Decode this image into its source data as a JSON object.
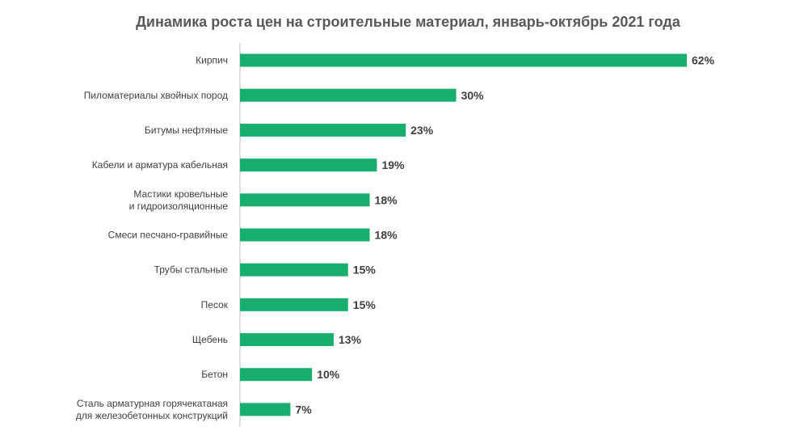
{
  "chart_data": {
    "type": "bar",
    "orientation": "horizontal",
    "title": "Динамика роста цен на строительные материал, январь-октябрь 2021 года",
    "categories": [
      [
        "Кирпич"
      ],
      [
        "Пиломатериалы хвойных пород"
      ],
      [
        "Битумы нефтяные"
      ],
      [
        "Кабели и арматура кабельная"
      ],
      [
        "Мастики кровельные",
        "и гидроизоляционные"
      ],
      [
        "Смеси песчано-гравийные"
      ],
      [
        "Трубы стальные"
      ],
      [
        "Песок"
      ],
      [
        "Щебень"
      ],
      [
        "Бетон"
      ],
      [
        "Сталь арматурная горячекатаная",
        "для железобетонных конструкций"
      ]
    ],
    "values": [
      62,
      30,
      23,
      19,
      18,
      18,
      15,
      15,
      13,
      10,
      7
    ],
    "value_labels": [
      "62%",
      "30%",
      "23%",
      "19%",
      "18%",
      "18%",
      "15%",
      "15%",
      "13%",
      "10%",
      "7%"
    ],
    "unit": "%",
    "xlim": [
      0,
      62
    ],
    "grid": false,
    "legend": "none",
    "bar_color": "#17AE6E",
    "axis_color": "#BFBFBF"
  }
}
